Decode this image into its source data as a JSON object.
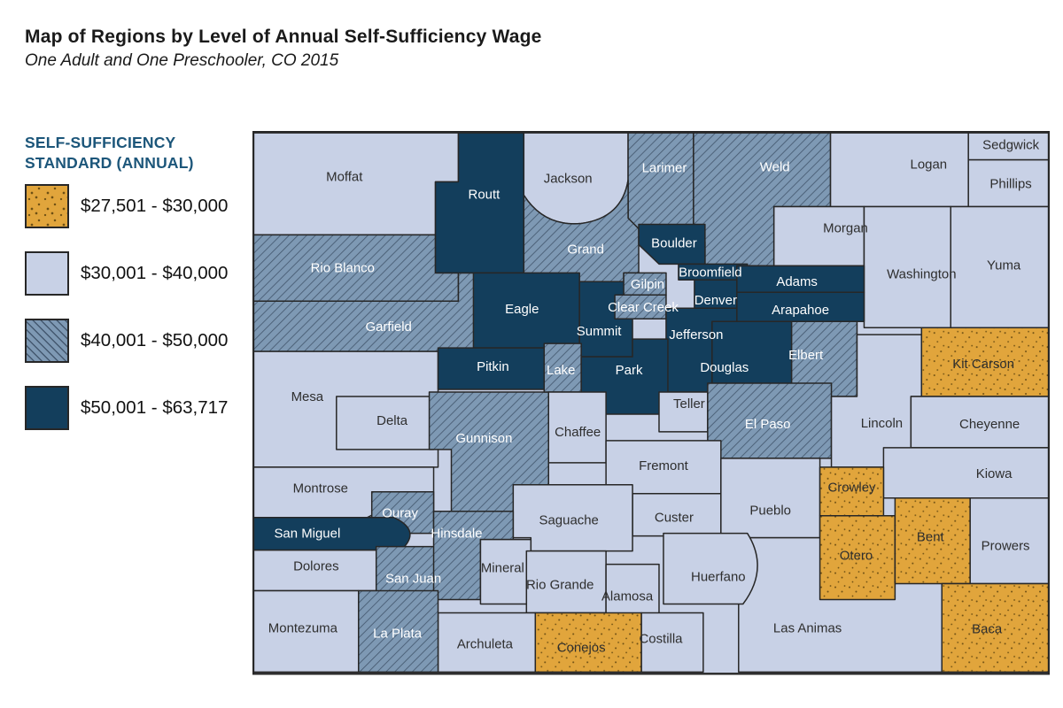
{
  "title": "Map of Regions by Level of Annual Self-Sufficiency Wage",
  "subtitle": "One Adult and One Preschooler, CO 2015",
  "legend": {
    "title": "SELF-SUFFICIENCY STANDARD (ANNUAL)",
    "title_color": "#1C567A",
    "items": [
      {
        "range": "$27,501 - $30,000",
        "color": "#E1A53C",
        "pattern": "dots",
        "level": 1
      },
      {
        "range": "$30,001 - $40,000",
        "color": "#C8D1E6",
        "pattern": "solid",
        "level": 2
      },
      {
        "range": "$40,001 - $50,000",
        "color": "#7E99B4",
        "pattern": "hatch",
        "level": 3
      },
      {
        "range": "$50,001 - $63,717",
        "color": "#133E5C",
        "pattern": "solid",
        "level": 4
      }
    ]
  },
  "map": {
    "state": "Colorado",
    "border_color": "#272727",
    "label_colors": {
      "dark": "#2E2E2E",
      "light": "#FFFFFF"
    },
    "counties": [
      {
        "name": "Moffat",
        "level": 2
      },
      {
        "name": "Rio Blanco",
        "level": 3
      },
      {
        "name": "Garfield",
        "level": 3
      },
      {
        "name": "Mesa",
        "level": 2
      },
      {
        "name": "Delta",
        "level": 2
      },
      {
        "name": "Montrose",
        "level": 2
      },
      {
        "name": "Gunnison",
        "level": 3
      },
      {
        "name": "Routt",
        "level": 4
      },
      {
        "name": "Jackson",
        "level": 2
      },
      {
        "name": "Larimer",
        "level": 3
      },
      {
        "name": "Weld",
        "level": 3
      },
      {
        "name": "Logan",
        "level": 2
      },
      {
        "name": "Sedgwick",
        "level": 2
      },
      {
        "name": "Phillips",
        "level": 2
      },
      {
        "name": "Morgan",
        "level": 2
      },
      {
        "name": "Washington",
        "level": 2
      },
      {
        "name": "Yuma",
        "level": 2
      },
      {
        "name": "Grand",
        "level": 3
      },
      {
        "name": "Eagle",
        "level": 4
      },
      {
        "name": "Summit",
        "level": 4
      },
      {
        "name": "Boulder",
        "level": 4
      },
      {
        "name": "Broomfield",
        "level": 4
      },
      {
        "name": "Gilpin",
        "level": 3
      },
      {
        "name": "Clear Creek",
        "level": 3
      },
      {
        "name": "Adams",
        "level": 4
      },
      {
        "name": "Arapahoe",
        "level": 4
      },
      {
        "name": "Denver",
        "level": 4
      },
      {
        "name": "Jefferson",
        "level": 4
      },
      {
        "name": "Douglas",
        "level": 4
      },
      {
        "name": "Elbert",
        "level": 3
      },
      {
        "name": "Lake",
        "level": 3
      },
      {
        "name": "Park",
        "level": 4
      },
      {
        "name": "Pitkin",
        "level": 4
      },
      {
        "name": "Teller",
        "level": 2
      },
      {
        "name": "El Paso",
        "level": 3
      },
      {
        "name": "Lincoln",
        "level": 2
      },
      {
        "name": "Kit Carson",
        "level": 1
      },
      {
        "name": "Cheyenne",
        "level": 2
      },
      {
        "name": "Kiowa",
        "level": 2
      },
      {
        "name": "Chaffee",
        "level": 2
      },
      {
        "name": "Fremont",
        "level": 2
      },
      {
        "name": "Custer",
        "level": 2
      },
      {
        "name": "Saguache",
        "level": 2
      },
      {
        "name": "Pueblo",
        "level": 2
      },
      {
        "name": "Las Animas",
        "level": 2
      },
      {
        "name": "Huerfano",
        "level": 2
      },
      {
        "name": "Crowley",
        "level": 1
      },
      {
        "name": "Otero",
        "level": 1
      },
      {
        "name": "Bent",
        "level": 1
      },
      {
        "name": "Prowers",
        "level": 2
      },
      {
        "name": "Baca",
        "level": 1
      },
      {
        "name": "Ouray",
        "level": 3
      },
      {
        "name": "San Miguel",
        "level": 4
      },
      {
        "name": "Dolores",
        "level": 2
      },
      {
        "name": "San Juan",
        "level": 3
      },
      {
        "name": "Hinsdale",
        "level": 3
      },
      {
        "name": "Mineral",
        "level": 2
      },
      {
        "name": "Rio Grande",
        "level": 2
      },
      {
        "name": "Alamosa",
        "level": 2
      },
      {
        "name": "Costilla",
        "level": 2
      },
      {
        "name": "Conejos",
        "level": 1
      },
      {
        "name": "Archuleta",
        "level": 2
      },
      {
        "name": "La Plata",
        "level": 3
      },
      {
        "name": "Montezuma",
        "level": 2
      }
    ]
  }
}
